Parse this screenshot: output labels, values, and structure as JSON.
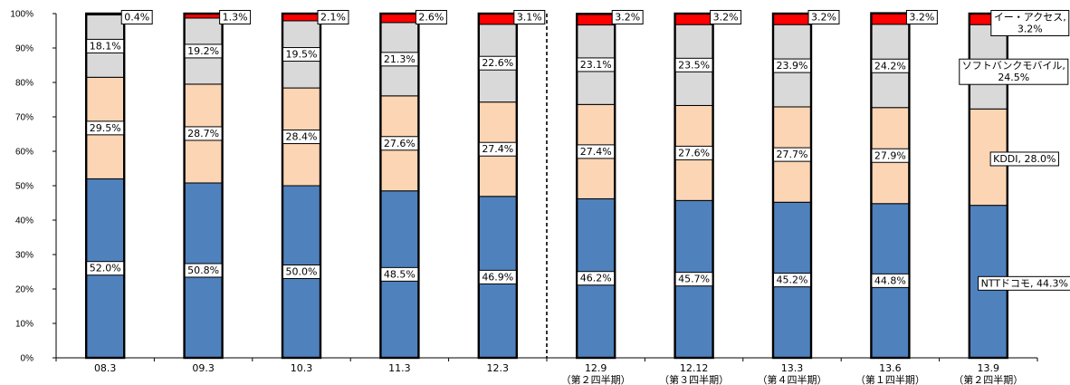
{
  "chart_data": {
    "type": "bar",
    "stacked": true,
    "title": "",
    "xlabel": "",
    "ylabel": "",
    "ylim": [
      0,
      100
    ],
    "yticks": [
      "0%",
      "10%",
      "20%",
      "30%",
      "40%",
      "50%",
      "60%",
      "70%",
      "80%",
      "90%",
      "100%"
    ],
    "categories": [
      "08.3",
      "09.3",
      "10.3",
      "11.3",
      "12.3",
      "12.9",
      "12.12",
      "13.3",
      "13.6",
      "13.9"
    ],
    "sub_categories": [
      "",
      "",
      "",
      "",
      "",
      "（第２四半期）",
      "（第３四半期）",
      "（第４四半期）",
      "（第１四半期）",
      "（第２四半期）"
    ],
    "series": [
      {
        "name": "NTTドコモ",
        "color": "#4f81bd",
        "values": [
          52.0,
          50.8,
          50.0,
          48.5,
          46.9,
          46.2,
          45.7,
          45.2,
          44.8,
          44.3
        ]
      },
      {
        "name": "KDDI",
        "color": "#fcd5b4",
        "values": [
          29.5,
          28.7,
          28.4,
          27.6,
          27.4,
          27.4,
          27.6,
          27.7,
          27.9,
          28.0
        ]
      },
      {
        "name": "ソフトバンクモバイル",
        "color": "#d9d9d9",
        "values": [
          18.1,
          19.2,
          19.5,
          21.3,
          22.6,
          23.1,
          23.5,
          23.9,
          24.2,
          24.5
        ]
      },
      {
        "name": "イー・アクセス",
        "color": "#ff0000",
        "values": [
          0.4,
          1.3,
          2.1,
          2.6,
          3.1,
          3.2,
          3.2,
          3.2,
          3.2,
          3.2
        ]
      }
    ],
    "data_labels": [
      [
        "52.0%",
        "50.8%",
        "50.0%",
        "48.5%",
        "46.9%",
        "46.2%",
        "45.7%",
        "45.2%",
        "44.8%",
        "NTTドコモ, 44.3%"
      ],
      [
        "29.5%",
        "28.7%",
        "28.4%",
        "27.6%",
        "27.4%",
        "27.4%",
        "27.6%",
        "27.7%",
        "27.9%",
        "KDDI, 28.0%"
      ],
      [
        "18.1%",
        "19.2%",
        "19.5%",
        "21.3%",
        "22.6%",
        "23.1%",
        "23.5%",
        "23.9%",
        "24.2%",
        "ソフトバンクモバイル, 24.5%"
      ],
      [
        "0.4%",
        "1.3%",
        "2.1%",
        "2.6%",
        "3.1%",
        "3.2%",
        "3.2%",
        "3.2%",
        "3.2%",
        "イー・アクセス, 3.2%"
      ]
    ],
    "divider_after_category": "12.3",
    "grid": false,
    "legend": "none"
  }
}
